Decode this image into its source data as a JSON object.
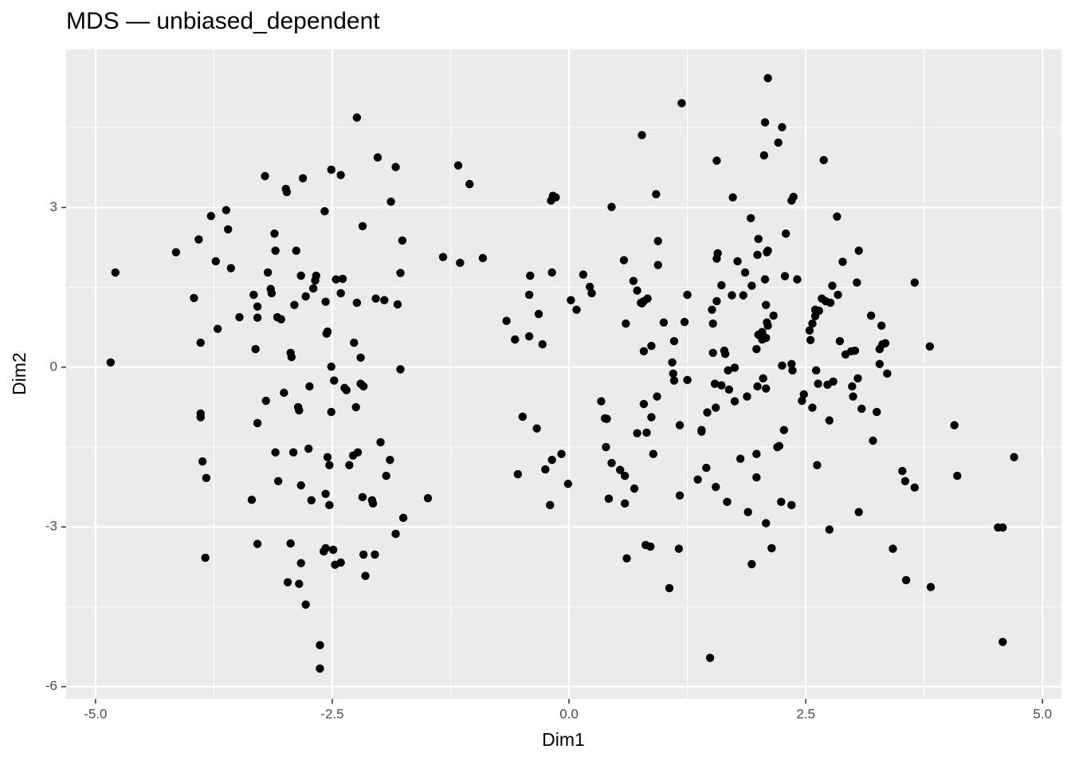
{
  "chart_data": {
    "type": "scatter",
    "title": "MDS — unbiased_dependent",
    "x_label": "Dim1",
    "y_label": "Dim2",
    "color": "#000000",
    "grid": true,
    "xlim": [
      -5.31,
      5.2
    ],
    "ylim": [
      -6.23,
      5.97
    ],
    "xticks": [
      {
        "value": -5,
        "label": "-5.0"
      },
      {
        "value": -2.5,
        "label": "-2.5"
      },
      {
        "value": 0,
        "label": "0.0"
      },
      {
        "value": 2.5,
        "label": "2.5"
      },
      {
        "value": 5,
        "label": "5.0"
      }
    ],
    "yticks": [
      -6,
      -3,
      0,
      3
    ],
    "xminor": [
      -3.75,
      -1.25,
      1.25,
      3.75
    ],
    "yminor": [
      -4.5,
      -1.5,
      1.5,
      4.5
    ],
    "x": [
      -4.79,
      -4.84,
      -4.15,
      -3.96,
      -3.91,
      -3.89,
      -3.89,
      -3.89,
      -3.87,
      -3.83,
      -3.84,
      -3.78,
      -3.73,
      -3.71,
      -3.62,
      -3.6,
      -3.57,
      -3.48,
      -3.33,
      -3.31,
      -3.29,
      -3.29,
      -3.29,
      -3.29,
      -3.35,
      -3.21,
      -3.2,
      -3.18,
      -3.15,
      -3.14,
      -3.11,
      -3.1,
      -3.1,
      -3.08,
      -3.07,
      -3.04,
      -3.01,
      -2.99,
      -2.98,
      -2.97,
      -2.94,
      -2.93,
      -2.94,
      -2.91,
      -2.9,
      -2.88,
      -2.86,
      -2.85,
      -2.85,
      -2.83,
      -2.83,
      -2.83,
      -2.81,
      -2.78,
      -2.78,
      -2.75,
      -2.74,
      -2.72,
      -2.7,
      -2.68,
      -2.67,
      -2.63,
      -2.63,
      -2.59,
      -2.58,
      -2.57,
      -2.57,
      -2.57,
      -2.56,
      -2.55,
      -2.55,
      -2.53,
      -2.53,
      -2.51,
      -2.51,
      -2.51,
      -2.49,
      -2.48,
      -2.46,
      -2.47,
      -2.41,
      -2.41,
      -2.41,
      -2.39,
      -2.37,
      -2.35,
      -2.32,
      -2.28,
      -2.27,
      -2.24,
      -2.24,
      -2.25,
      -2.23,
      -2.2,
      -2.2,
      -2.18,
      -2.17,
      -2.17,
      -2.15,
      -2.18,
      -2.08,
      -2.07,
      -2.05,
      -2.04,
      -2.02,
      -1.99,
      -1.95,
      -1.93,
      -1.89,
      -1.88,
      -1.83,
      -1.83,
      -1.81,
      -1.78,
      -1.78,
      -1.76,
      -1.75,
      -1.49,
      -1.33,
      -1.17,
      -1.15,
      -1.05,
      -0.91,
      -0.66,
      -0.57,
      -0.54,
      -0.49,
      -0.42,
      -0.41,
      -0.42,
      -0.34,
      -0.32,
      -0.28,
      -0.25,
      -0.2,
      -0.19,
      -0.18,
      -0.17,
      -0.14,
      -0.18,
      -0.08,
      -0.01,
      0.02,
      0.08,
      0.15,
      0.22,
      0.24,
      0.34,
      0.38,
      0.4,
      0.39,
      0.42,
      0.45,
      0.45,
      0.54,
      0.58,
      0.59,
      0.6,
      0.59,
      0.61,
      0.68,
      0.69,
      0.72,
      0.72,
      0.76,
      0.77,
      0.79,
      0.79,
      0.79,
      0.77,
      0.81,
      0.82,
      0.83,
      0.86,
      0.87,
      0.87,
      0.89,
      0.92,
      0.93,
      0.94,
      0.94,
      1.0,
      1.06,
      1.11,
      1.17,
      1.09,
      1.1,
      1.11,
      1.17,
      1.16,
      1.19,
      1.22,
      1.25,
      1.25,
      1.36,
      1.4,
      1.4,
      1.45,
      1.46,
      1.49,
      1.51,
      1.52,
      1.52,
      1.54,
      1.56,
      1.56,
      1.57,
      1.55,
      1.55,
      1.56,
      1.61,
      1.61,
      1.65,
      1.64,
      1.67,
      1.68,
      1.69,
      1.72,
      1.73,
      1.75,
      1.75,
      1.78,
      1.81,
      1.84,
      1.86,
      1.88,
      1.89,
      1.92,
      1.93,
      1.93,
      1.98,
      1.99,
      1.98,
      2.0,
      1.98,
      2.0,
      1.99,
      2.04,
      2.04,
      2.05,
      2.06,
      2.07,
      2.07,
      2.08,
      2.08,
      2.08,
      2.08,
      2.09,
      2.09,
      2.1,
      2.1,
      2.1,
      2.14,
      2.16,
      2.2,
      2.21,
      2.22,
      2.24,
      2.25,
      2.25,
      2.27,
      2.28,
      2.29,
      2.35,
      2.35,
      2.35,
      2.36,
      2.37,
      2.41,
      2.46,
      2.48,
      2.54,
      2.55,
      2.57,
      2.57,
      2.6,
      2.6,
      2.61,
      2.62,
      2.63,
      2.64,
      2.67,
      2.69,
      2.71,
      2.73,
      2.75,
      2.75,
      2.76,
      2.78,
      2.79,
      2.83,
      2.84,
      2.86,
      2.92,
      2.89,
      2.98,
      2.99,
      3.0,
      3.02,
      3.04,
      3.05,
      3.06,
      3.06,
      3.09,
      3.19,
      3.21,
      3.25,
      3.28,
      3.28,
      3.3,
      3.31,
      3.34,
      3.36,
      3.42,
      3.52,
      3.55,
      3.56,
      3.65,
      3.65,
      3.81,
      3.82,
      4.07,
      4.1,
      4.53,
      4.58,
      4.58,
      4.7
    ],
    "y": [
      1.78,
      0.09,
      2.16,
      1.3,
      2.4,
      0.46,
      -0.87,
      -0.94,
      -1.77,
      -2.08,
      -3.58,
      2.84,
      1.99,
      0.72,
      2.95,
      2.59,
      1.86,
      0.94,
      1.36,
      0.34,
      1.14,
      0.93,
      -1.05,
      -3.32,
      -2.49,
      3.59,
      -0.63,
      1.78,
      1.47,
      1.39,
      2.51,
      -1.6,
      2.19,
      0.94,
      -2.14,
      0.9,
      -0.48,
      3.35,
      3.29,
      -4.04,
      0.27,
      0.19,
      -3.31,
      -1.6,
      1.17,
      2.19,
      -0.75,
      -0.81,
      -4.07,
      -3.68,
      -2.22,
      1.72,
      3.55,
      -4.46,
      1.33,
      -1.53,
      -0.36,
      -2.5,
      1.48,
      1.63,
      1.72,
      -5.22,
      -5.66,
      -3.46,
      2.93,
      1.23,
      -2.38,
      -3.4,
      0.63,
      0.67,
      -1.69,
      -1.84,
      -2.59,
      0.01,
      -0.84,
      3.71,
      -3.43,
      -0.25,
      1.65,
      -3.71,
      -3.67,
      3.61,
      1.39,
      1.66,
      -0.39,
      -0.43,
      -1.84,
      -1.66,
      0.46,
      1.21,
      4.69,
      -0.75,
      -1.6,
      -0.31,
      0.18,
      -2.44,
      -0.36,
      -3.52,
      -3.92,
      2.65,
      -2.5,
      -2.56,
      -3.52,
      1.29,
      3.94,
      -1.41,
      1.26,
      -2.04,
      -1.74,
      3.11,
      3.76,
      -3.13,
      1.18,
      -0.04,
      1.77,
      2.38,
      -2.83,
      -2.46,
      2.07,
      3.79,
      1.96,
      3.44,
      2.05,
      0.87,
      0.52,
      -2.01,
      -0.93,
      1.36,
      1.72,
      0.58,
      -1.15,
      1.0,
      0.43,
      -1.92,
      -2.59,
      3.13,
      -1.74,
      3.22,
      3.19,
      1.78,
      -1.63,
      -2.19,
      1.26,
      1.08,
      1.74,
      1.51,
      1.39,
      -0.64,
      -0.96,
      -0.97,
      -1.5,
      -2.47,
      3.01,
      -1.8,
      -1.93,
      2.01,
      -2.04,
      0.82,
      -2.56,
      -3.59,
      1.62,
      -2.28,
      -1.24,
      1.44,
      1.21,
      1.2,
      0.3,
      -0.69,
      1.24,
      4.36,
      -3.34,
      -1.23,
      1.29,
      -3.37,
      -0.94,
      0.4,
      -1.63,
      3.25,
      -0.55,
      1.92,
      2.37,
      0.84,
      -4.15,
      0.49,
      -1.09,
      0.09,
      -0.12,
      -0.25,
      -2.41,
      -3.41,
      4.96,
      0.85,
      1.36,
      -0.24,
      -2.11,
      -1.18,
      -1.21,
      -1.89,
      -0.85,
      -5.46,
      1.08,
      0.82,
      0.27,
      -0.31,
      3.88,
      2.04,
      2.14,
      -0.76,
      -2.25,
      1.24,
      1.54,
      -0.34,
      0.25,
      0.31,
      -2.53,
      -0.06,
      -0.42,
      1.35,
      3.19,
      -0.64,
      -0.01,
      1.99,
      -1.72,
      1.35,
      1.78,
      -0.55,
      -2.72,
      2.8,
      1.53,
      -3.7,
      -2.07,
      2.11,
      0.34,
      0.61,
      -1.63,
      2.41,
      -0.36,
      0.66,
      0.52,
      -0.21,
      3.98,
      4.6,
      1.65,
      1.17,
      -2.93,
      -0.4,
      0.55,
      0.84,
      2.16,
      2.19,
      5.43,
      0.78,
      -3.4,
      0.97,
      -1.5,
      4.22,
      -1.48,
      -2.53,
      4.51,
      0.03,
      -1.18,
      1.71,
      2.51,
      3.13,
      0.06,
      -2.59,
      -0.06,
      3.2,
      1.65,
      -0.63,
      -0.51,
      0.69,
      0.51,
      -0.76,
      0.82,
      1.08,
      0.96,
      -0.06,
      -1.84,
      -0.31,
      1.06,
      1.29,
      3.89,
      1.24,
      -0.33,
      -1.0,
      -3.05,
      1.21,
      1.53,
      -0.27,
      2.83,
      1.36,
      0.49,
      0.24,
      1.98,
      0.3,
      -0.36,
      -0.55,
      0.31,
      1.59,
      -0.21,
      -2.72,
      2.19,
      -0.78,
      0.97,
      -1.38,
      -0.84,
      0.34,
      0.06,
      0.78,
      0.43,
      0.45,
      -0.12,
      -3.41,
      -1.95,
      -2.14,
      -4.0,
      -2.26,
      1.59,
      0.39,
      -4.13,
      -1.09,
      -2.04,
      -3.01,
      -3.01,
      -5.16,
      -1.69
    ]
  }
}
